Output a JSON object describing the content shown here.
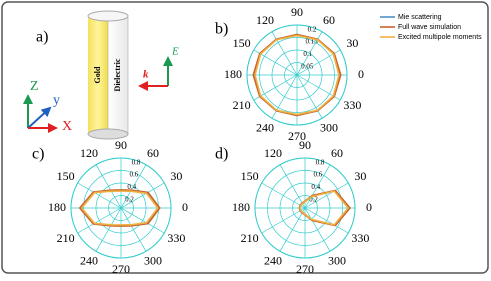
{
  "diagram": {
    "label": "a)",
    "cylinder": [
      "Gold",
      "Dielectric"
    ],
    "axes": [
      "Z",
      "y",
      "X"
    ],
    "field": "E",
    "wave": "k"
  },
  "chart_data": [
    {
      "type": "polar",
      "label": "b)",
      "legend": "upper right",
      "theta": [
        0,
        30,
        60,
        90,
        120,
        150,
        180,
        210,
        240,
        270,
        300,
        330
      ],
      "thetaticks": [
        0,
        30,
        60,
        90,
        120,
        150,
        180,
        210,
        240,
        270,
        300,
        330
      ],
      "rlim": [
        0,
        0.2
      ],
      "rticks": [
        0.05,
        0.1,
        0.15,
        0.2
      ],
      "series": [
        {
          "name": "Mie scattering",
          "color": "#4f8fc8",
          "values": [
            0.17,
            0.17,
            0.165,
            0.16,
            0.165,
            0.17,
            0.17,
            0.17,
            0.165,
            0.16,
            0.165,
            0.17
          ]
        },
        {
          "name": "Full wave simulation",
          "color": "#c8642d",
          "values": [
            0.175,
            0.172,
            0.165,
            0.162,
            0.165,
            0.172,
            0.175,
            0.172,
            0.165,
            0.162,
            0.165,
            0.172
          ]
        },
        {
          "name": "Excited multipole moments",
          "color": "#f0b040",
          "values": [
            0.168,
            0.168,
            0.163,
            0.158,
            0.163,
            0.168,
            0.168,
            0.168,
            0.163,
            0.158,
            0.163,
            0.168
          ]
        }
      ]
    },
    {
      "type": "polar",
      "label": "c)",
      "theta": [
        0,
        30,
        60,
        90,
        120,
        150,
        180,
        210,
        240,
        270,
        300,
        330
      ],
      "thetaticks": [
        0,
        30,
        60,
        90,
        120,
        150,
        180,
        210,
        240,
        270,
        300,
        330
      ],
      "rlim": [
        0,
        0.8
      ],
      "rticks": [
        0.2,
        0.4,
        0.6,
        0.8
      ],
      "series": [
        {
          "color": "#4f8fc8",
          "values": [
            0.6,
            0.48,
            0.32,
            0.28,
            0.32,
            0.5,
            0.64,
            0.5,
            0.32,
            0.28,
            0.32,
            0.48
          ]
        },
        {
          "color": "#c8642d",
          "values": [
            0.62,
            0.5,
            0.33,
            0.29,
            0.33,
            0.51,
            0.66,
            0.51,
            0.33,
            0.29,
            0.33,
            0.5
          ]
        },
        {
          "color": "#f0b040",
          "values": [
            0.59,
            0.47,
            0.31,
            0.27,
            0.31,
            0.49,
            0.63,
            0.49,
            0.31,
            0.27,
            0.31,
            0.47
          ]
        }
      ]
    },
    {
      "type": "polar",
      "label": "d)",
      "theta": [
        0,
        30,
        60,
        90,
        120,
        150,
        180,
        210,
        240,
        270,
        300,
        330
      ],
      "thetaticks": [
        0,
        30,
        60,
        90,
        120,
        150,
        180,
        210,
        240,
        270,
        300,
        330
      ],
      "rlim": [
        0,
        0.8
      ],
      "rticks": [
        0.2,
        0.4,
        0.6,
        0.8
      ],
      "series": [
        {
          "color": "#4f8fc8",
          "values": [
            0.7,
            0.55,
            0.22,
            0.1,
            0.08,
            0.08,
            0.08,
            0.08,
            0.08,
            0.1,
            0.22,
            0.55
          ]
        },
        {
          "color": "#c8642d",
          "values": [
            0.72,
            0.56,
            0.23,
            0.11,
            0.09,
            0.09,
            0.09,
            0.09,
            0.09,
            0.11,
            0.23,
            0.56
          ]
        },
        {
          "color": "#f0b040",
          "values": [
            0.69,
            0.54,
            0.21,
            0.1,
            0.08,
            0.08,
            0.08,
            0.08,
            0.08,
            0.1,
            0.21,
            0.54
          ]
        }
      ]
    }
  ]
}
